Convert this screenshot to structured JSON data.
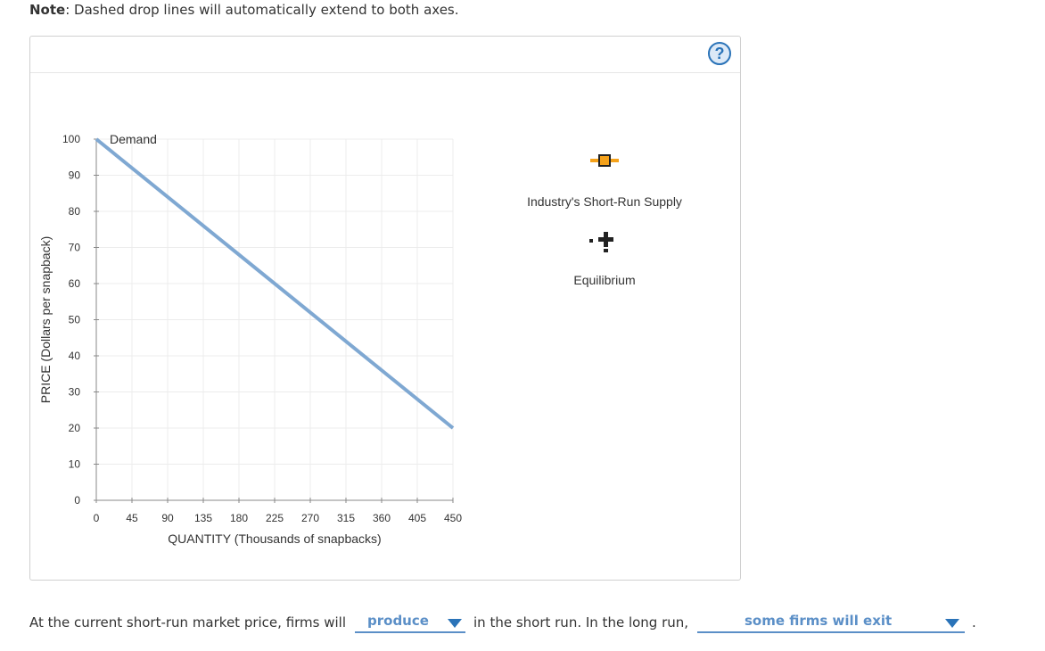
{
  "note": {
    "label": "Note",
    "text": ": Dashed drop lines will automatically extend to both axes."
  },
  "help": {
    "symbol": "?"
  },
  "chart_data": {
    "type": "line",
    "xlabel": "QUANTITY (Thousands of snapbacks)",
    "ylabel": "PRICE (Dollars per snapback)",
    "xlim": [
      0,
      450
    ],
    "ylim": [
      0,
      100
    ],
    "xticks": [
      0,
      45,
      90,
      135,
      180,
      225,
      270,
      315,
      360,
      405,
      450
    ],
    "yticks": [
      0,
      10,
      20,
      30,
      40,
      50,
      60,
      70,
      80,
      90,
      100
    ],
    "grid": true,
    "series": [
      {
        "name": "Demand",
        "color": "#7fa8d2",
        "points": [
          [
            0,
            100
          ],
          [
            450,
            20
          ]
        ]
      }
    ]
  },
  "legend": {
    "supply": {
      "label": "Industry's Short-Run Supply",
      "icon": "orange-square-marker-icon",
      "color": "#f5a21b"
    },
    "equilibrium": {
      "label": "Equilibrium",
      "icon": "cross-plus-icon"
    }
  },
  "question": {
    "part1": "At the current short-run market price, firms will",
    "dropdown1": "produce",
    "part2": "in the short run. In the long run,",
    "dropdown2": "some firms will exit",
    "end": "."
  }
}
